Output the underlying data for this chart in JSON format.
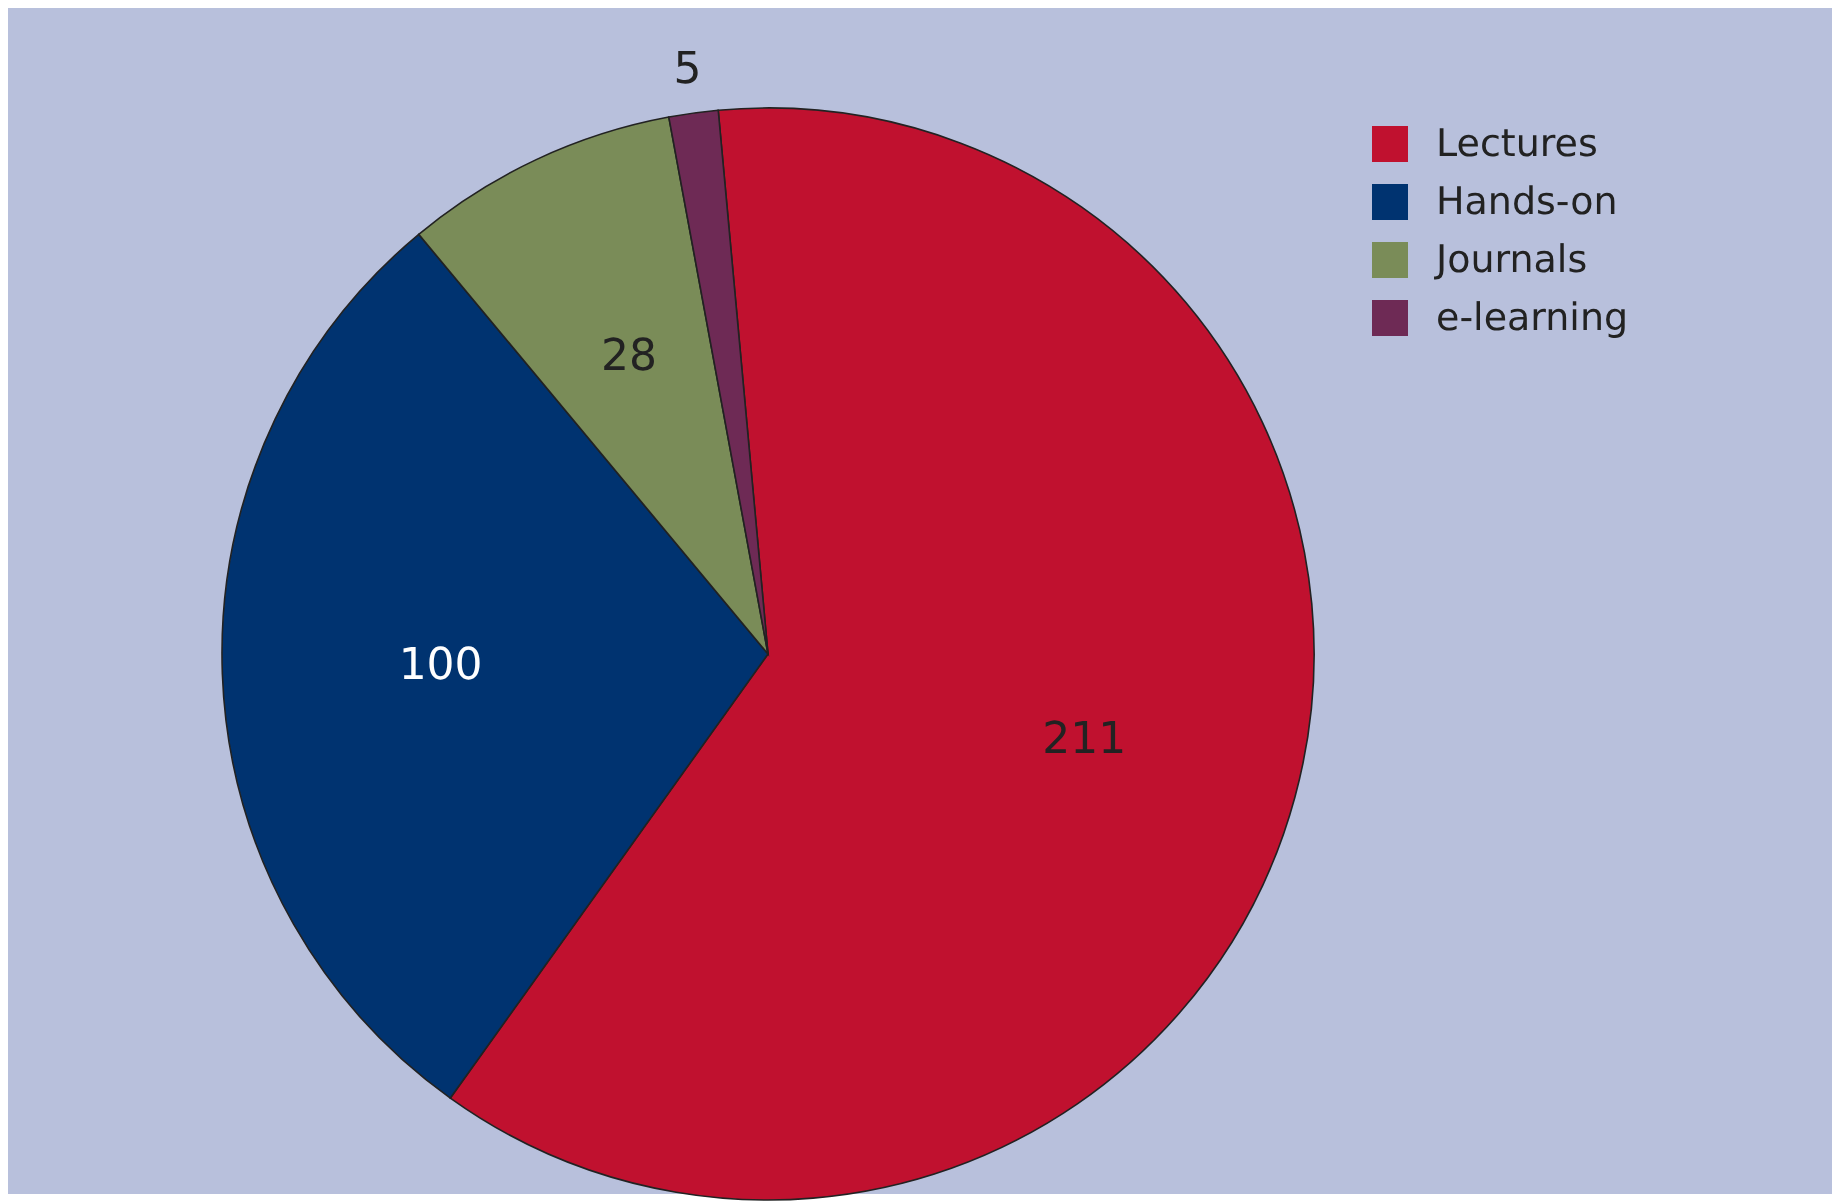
{
  "chart_data": {
    "type": "pie",
    "categories": [
      "Lectures",
      "Hands-on",
      "Journals",
      "e-learning"
    ],
    "values": [
      211,
      100,
      28,
      5
    ],
    "colors": [
      "#c0112f",
      "#003370",
      "#7a8c58",
      "#6e2a55"
    ],
    "data_labels": true,
    "legend": "top right"
  }
}
